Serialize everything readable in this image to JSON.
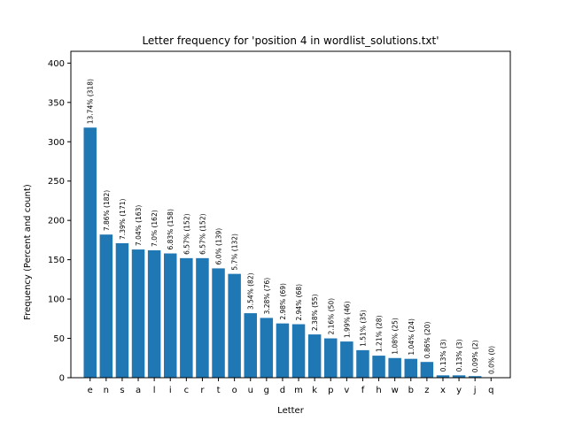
{
  "chart_data": {
    "type": "bar",
    "title": "Letter frequency for 'position 4 in wordlist_solutions.txt'",
    "xlabel": "Letter",
    "ylabel": "Frequency (Percent and count)",
    "ylim": [
      0,
      415
    ],
    "yticks": [
      0,
      50,
      100,
      150,
      200,
      250,
      300,
      350,
      400
    ],
    "grid": false,
    "bar_color": "#1f77b4",
    "categories": [
      "e",
      "n",
      "s",
      "a",
      "l",
      "i",
      "c",
      "r",
      "t",
      "o",
      "u",
      "g",
      "d",
      "m",
      "k",
      "p",
      "v",
      "f",
      "h",
      "w",
      "b",
      "z",
      "x",
      "y",
      "j",
      "q"
    ],
    "values": [
      318,
      182,
      171,
      163,
      162,
      158,
      152,
      152,
      139,
      132,
      82,
      76,
      69,
      68,
      55,
      50,
      46,
      35,
      28,
      25,
      24,
      20,
      3,
      3,
      2,
      0
    ],
    "labels": [
      "13.74% (318)",
      "7.86% (182)",
      "7.39% (171)",
      "7.04% (163)",
      "7.0% (162)",
      "6.83% (158)",
      "6.57% (152)",
      "6.57% (152)",
      "6.0% (139)",
      "5.7% (132)",
      "3.54% (82)",
      "3.28% (76)",
      "2.98% (69)",
      "2.94% (68)",
      "2.38% (55)",
      "2.16% (50)",
      "1.99% (46)",
      "1.51% (35)",
      "1.21% (28)",
      "1.08% (25)",
      "1.04% (24)",
      "0.86% (20)",
      "0.13% (3)",
      "0.13% (3)",
      "0.09% (2)",
      "0.0% (0)"
    ]
  }
}
